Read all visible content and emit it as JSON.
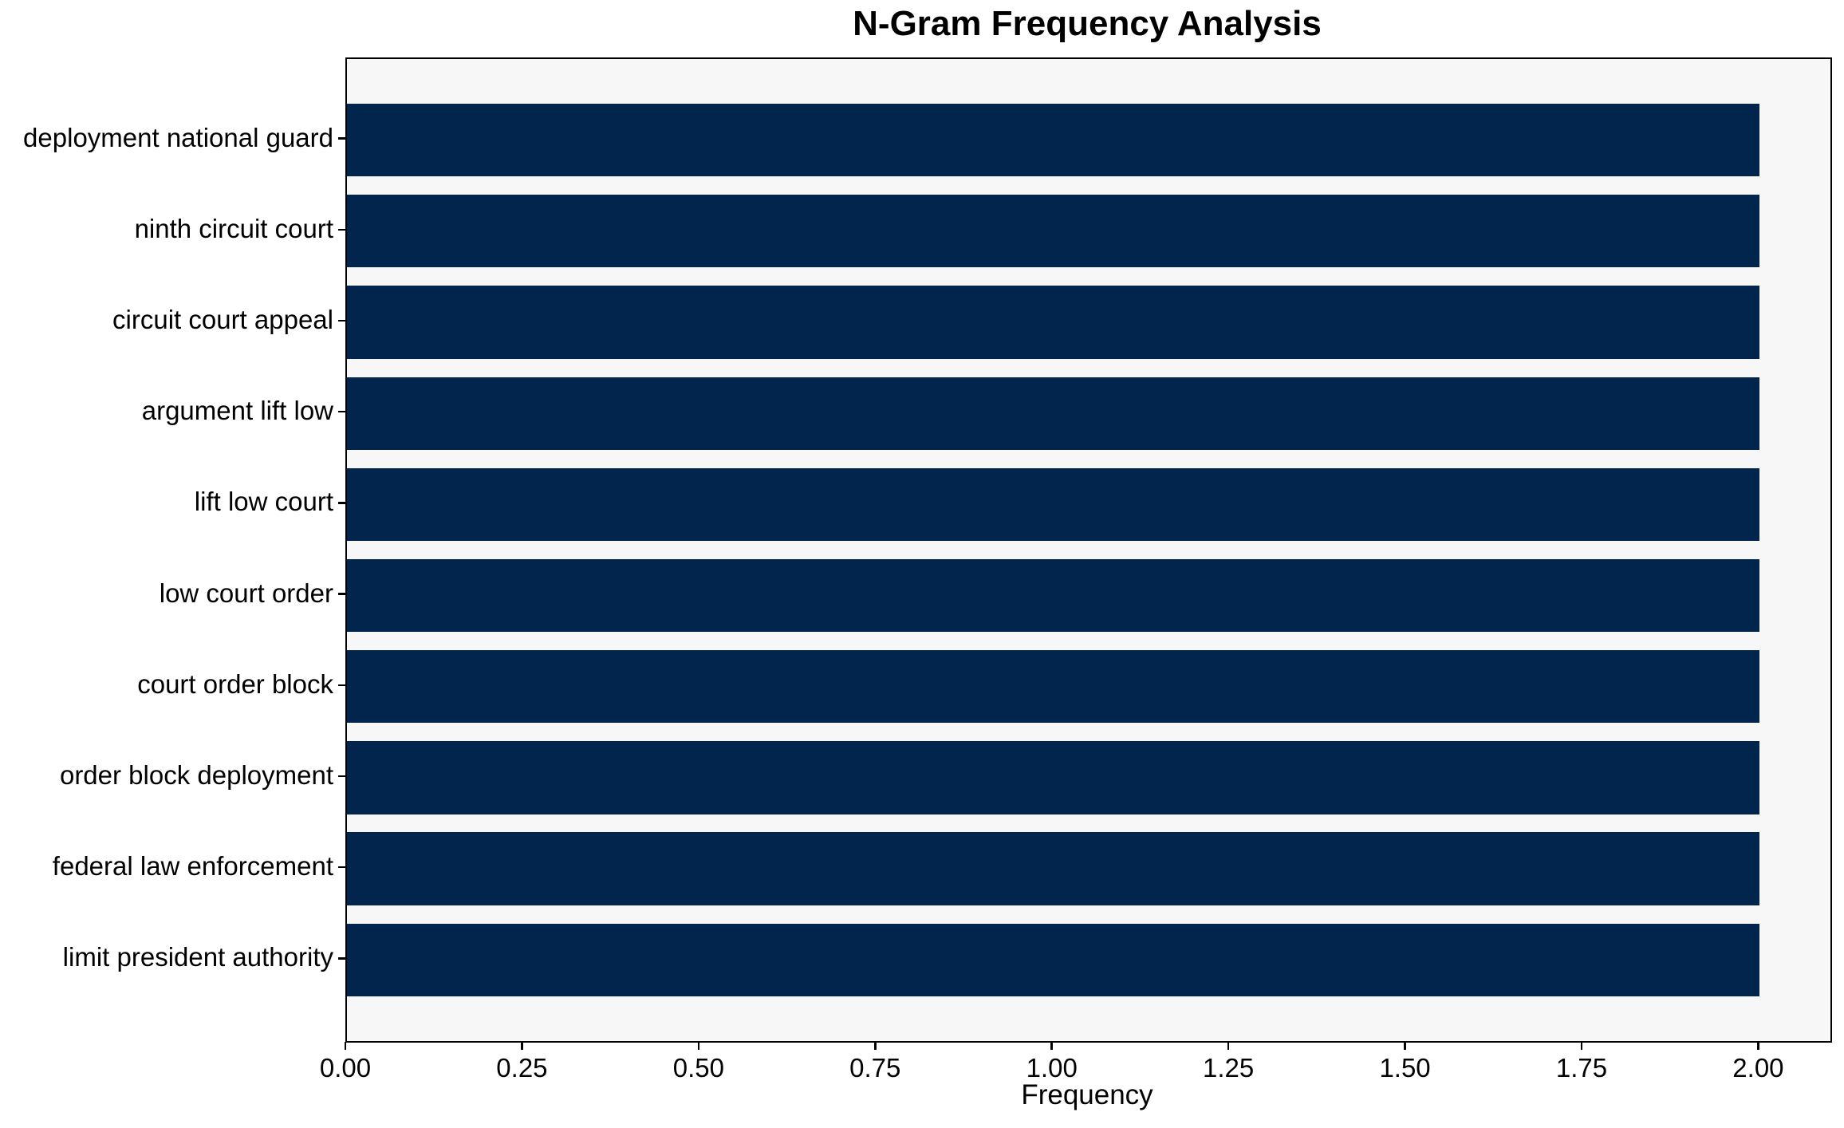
{
  "chart_data": {
    "type": "bar",
    "orientation": "horizontal",
    "title": "N-Gram Frequency Analysis",
    "categories": [
      "deployment national guard",
      "ninth circuit court",
      "circuit court appeal",
      "argument lift low",
      "lift low court",
      "low court order",
      "court order block",
      "order block deployment",
      "federal law enforcement",
      "limit president authority"
    ],
    "values": [
      2,
      2,
      2,
      2,
      2,
      2,
      2,
      2,
      2,
      2
    ],
    "xlabel": "Frequency",
    "ylabel": "",
    "xlim": [
      0,
      2.1
    ],
    "xticks": [
      0.0,
      0.25,
      0.5,
      0.75,
      1.0,
      1.25,
      1.5,
      1.75,
      2.0
    ],
    "xtick_labels": [
      "0.00",
      "0.25",
      "0.50",
      "0.75",
      "1.00",
      "1.25",
      "1.50",
      "1.75",
      "2.00"
    ],
    "grid": false,
    "legend": false,
    "colors": {
      "bar": "#02254e",
      "plot_background": "#f7f7f7",
      "figure_background": "#ffffff",
      "spine": "#000000",
      "text": "#000000"
    }
  }
}
